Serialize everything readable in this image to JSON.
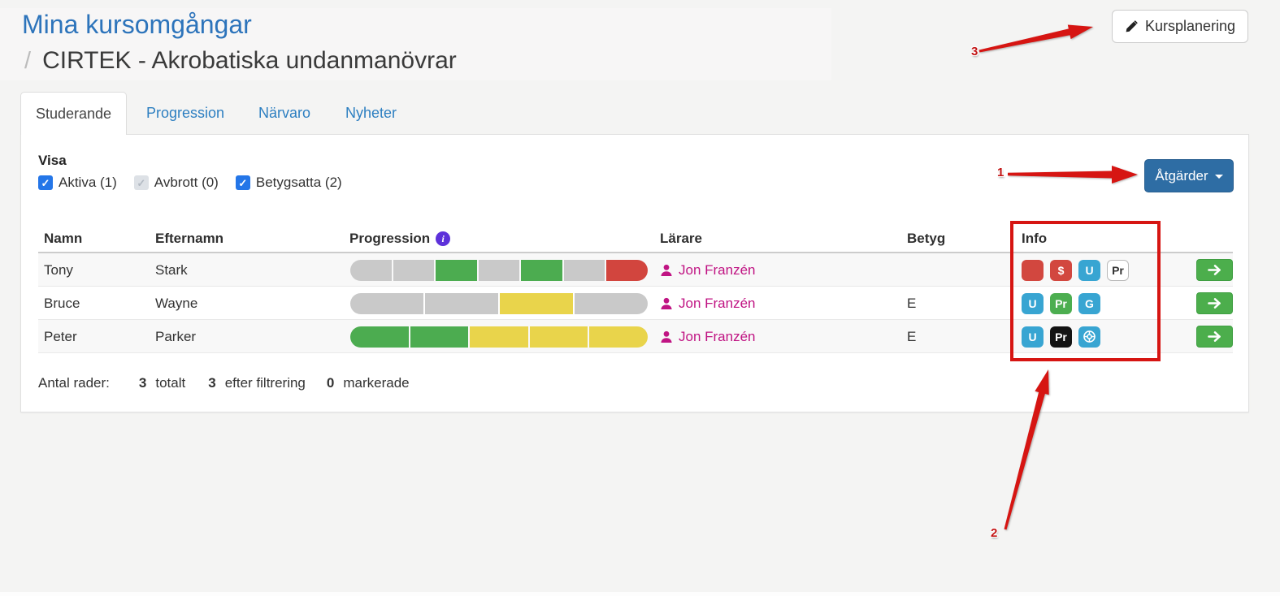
{
  "page": {
    "title": "Mina kursomgångar",
    "breadcrumb_separator": "/",
    "subtitle": "CIRTEK - Akrobatiska undanmanövrar"
  },
  "header": {
    "kursplanering_label": "Kursplanering"
  },
  "tabs": [
    {
      "label": "Studerande",
      "active": true
    },
    {
      "label": "Progression",
      "active": false
    },
    {
      "label": "Närvaro",
      "active": false
    },
    {
      "label": "Nyheter",
      "active": false
    }
  ],
  "filters": {
    "heading": "Visa",
    "checkboxes": [
      {
        "label": "Aktiva (1)",
        "checked": true,
        "disabled": false
      },
      {
        "label": "Avbrott (0)",
        "checked": true,
        "disabled": true
      },
      {
        "label": "Betygsatta (2)",
        "checked": true,
        "disabled": false
      }
    ]
  },
  "actions_button": {
    "label": "Åtgärder"
  },
  "table": {
    "columns": [
      "Namn",
      "Efternamn",
      "Progression",
      "Lärare",
      "Betyg",
      "Info"
    ],
    "rows": [
      {
        "first_name": "Tony",
        "last_name": "Stark",
        "progression_segments": [
          "gray",
          "gray",
          "green",
          "gray",
          "green",
          "gray",
          "red"
        ],
        "teacher": "Jon Franzén",
        "grade": "",
        "badges": [
          {
            "color": "red",
            "text": ""
          },
          {
            "color": "red",
            "text": "$"
          },
          {
            "color": "blue",
            "text": "U"
          },
          {
            "color": "outline",
            "text": "Pr"
          }
        ]
      },
      {
        "first_name": "Bruce",
        "last_name": "Wayne",
        "progression_segments": [
          "gray",
          "gray",
          "yellow",
          "gray"
        ],
        "teacher": "Jon Franzén",
        "grade": "E",
        "badges": [
          {
            "color": "blue",
            "text": "U"
          },
          {
            "color": "green",
            "text": "Pr"
          },
          {
            "color": "blue",
            "text": "G"
          }
        ]
      },
      {
        "first_name": "Peter",
        "last_name": "Parker",
        "progression_segments": [
          "green",
          "green",
          "yellow",
          "yellow",
          "yellow"
        ],
        "teacher": "Jon Franzén",
        "grade": "E",
        "badges": [
          {
            "color": "blue",
            "text": "U"
          },
          {
            "color": "black",
            "text": "Pr"
          },
          {
            "color": "blue",
            "text": "",
            "icon": "life-ring-icon"
          }
        ]
      }
    ]
  },
  "footer": {
    "label": "Antal rader:",
    "counts": [
      {
        "value": "3",
        "label": "totalt"
      },
      {
        "value": "3",
        "label": "efter filtrering"
      },
      {
        "value": "0",
        "label": "markerade"
      }
    ]
  },
  "annotations": {
    "arrow_labels": [
      "1",
      "2",
      "3"
    ]
  },
  "icons": {
    "kursplanering": "pencil-icon",
    "progression_header": "info-icon",
    "teacher": "person-icon",
    "row_action": "arrow-right-icon",
    "actions_caret": "caret-down-icon",
    "peter_badge": "life-ring-icon"
  },
  "colors": {
    "page_background": "#f4f4f3",
    "title_blue": "#2d74bb",
    "tab_link_blue": "#2d7fc1",
    "teacher_magenta": "#c01483",
    "primary_button": "#2e6da4",
    "row_action_green": "#4cae4c",
    "progress_gray": "#c9c9c9",
    "progress_green": "#4cac50",
    "progress_yellow": "#e9d44b",
    "progress_red": "#d2453e",
    "badge_red": "#d2473f",
    "badge_blue": "#38a5d2",
    "badge_green": "#4cae50",
    "badge_black": "#141414",
    "info_icon_purple": "#5d31da",
    "checkbox_blue": "#2476e8",
    "annotation_red": "#d61512"
  }
}
